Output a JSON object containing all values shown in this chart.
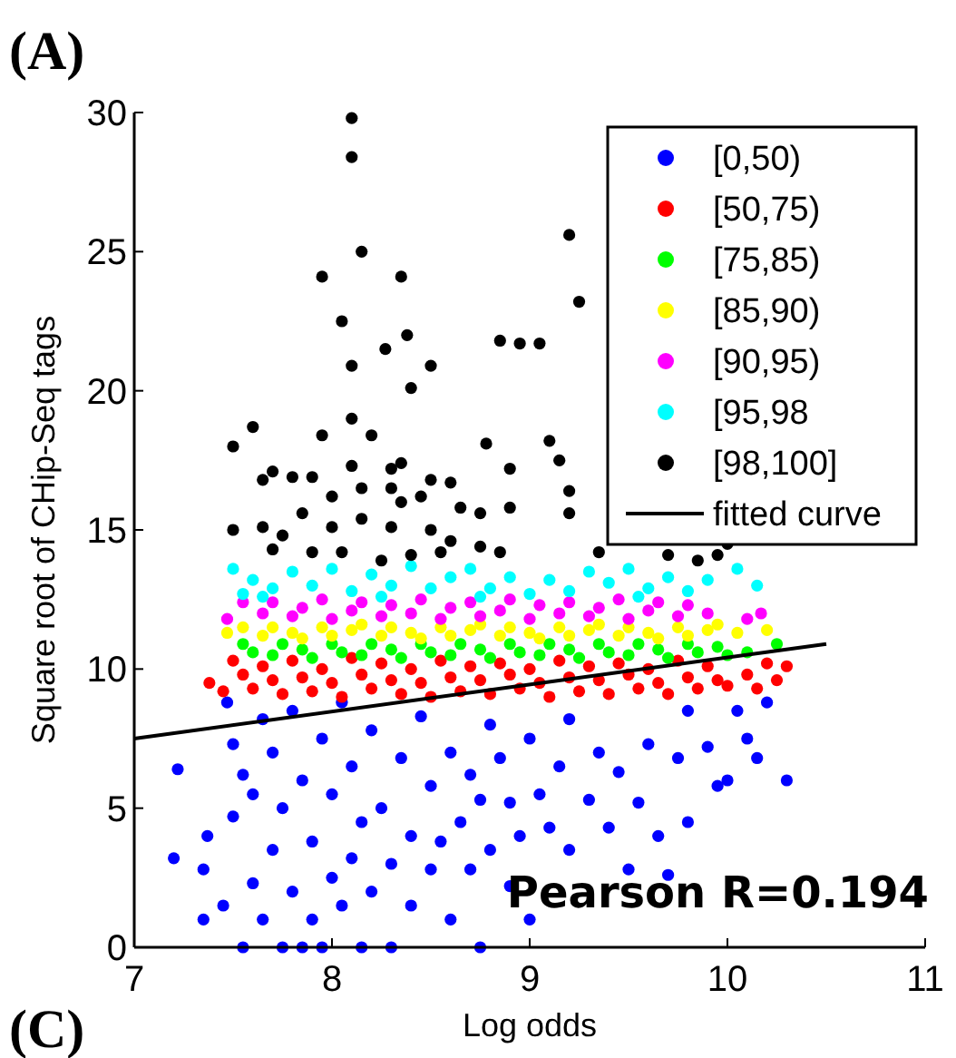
{
  "chart_data": {
    "type": "scatter",
    "xlabel": "Log odds",
    "ylabel": "Square root of CHip-Seq tags",
    "xlim": [
      7,
      11
    ],
    "xticks": [
      7,
      8,
      9,
      10,
      11
    ],
    "ylim": [
      0,
      30
    ],
    "yticks": [
      0,
      5,
      10,
      15,
      20,
      25,
      30
    ],
    "grid": false,
    "legend": "top right",
    "marker": "circle",
    "annotations": [
      "(A)",
      "(C)",
      "Pearson R=0.194"
    ],
    "series": [
      {
        "name": "[0,50)",
        "color": "#0000ff",
        "x": [
          7.22,
          7.2,
          7.35,
          7.35,
          7.37,
          7.45,
          7.47,
          7.5,
          7.5,
          7.55,
          7.55,
          7.6,
          7.6,
          7.65,
          7.65,
          7.7,
          7.7,
          7.75,
          7.75,
          7.8,
          7.8,
          7.85,
          7.85,
          7.9,
          7.9,
          7.95,
          7.95,
          8.0,
          8.0,
          8.05,
          8.05,
          8.1,
          8.1,
          8.15,
          8.15,
          8.2,
          8.2,
          8.25,
          8.3,
          8.3,
          8.35,
          8.4,
          8.4,
          8.45,
          8.5,
          8.5,
          8.55,
          8.6,
          8.6,
          8.65,
          8.7,
          8.7,
          8.75,
          8.75,
          8.8,
          8.8,
          8.85,
          8.9,
          8.9,
          8.95,
          9.0,
          9.0,
          9.05,
          9.1,
          9.15,
          9.2,
          9.2,
          9.3,
          9.35,
          9.4,
          9.45,
          9.5,
          9.55,
          9.6,
          9.65,
          9.7,
          9.75,
          9.8,
          9.8,
          9.9,
          9.95,
          10.0,
          10.05,
          10.1,
          10.15,
          10.2,
          10.3
        ],
        "values": [
          6.4,
          3.2,
          2.8,
          1.0,
          4.0,
          1.5,
          8.8,
          7.3,
          4.7,
          0.0,
          6.2,
          2.3,
          5.5,
          8.2,
          1.0,
          3.5,
          7.0,
          0.0,
          5.0,
          2.0,
          8.5,
          0.0,
          6.0,
          1.0,
          3.8,
          7.5,
          0.0,
          2.5,
          5.5,
          1.5,
          8.8,
          3.2,
          6.5,
          0.0,
          4.5,
          2.0,
          7.8,
          5.0,
          3.0,
          0.0,
          6.8,
          4.0,
          1.5,
          8.3,
          5.8,
          2.8,
          3.8,
          7.0,
          1.0,
          4.5,
          6.2,
          2.8,
          0.0,
          5.3,
          8.0,
          3.5,
          6.8,
          2.2,
          5.2,
          4.0,
          1.0,
          7.5,
          5.5,
          4.3,
          6.5,
          8.2,
          3.5,
          5.3,
          7.0,
          4.3,
          6.3,
          2.8,
          5.2,
          7.3,
          4.0,
          2.6,
          6.8,
          8.5,
          4.5,
          7.2,
          5.8,
          6.0,
          8.5,
          7.5,
          6.8,
          8.8,
          6.0
        ]
      },
      {
        "name": "[50,75)",
        "color": "#ff0000",
        "x": [
          7.38,
          7.45,
          7.5,
          7.55,
          7.6,
          7.65,
          7.7,
          7.75,
          7.8,
          7.85,
          7.9,
          7.95,
          8.0,
          8.05,
          8.1,
          8.15,
          8.2,
          8.25,
          8.3,
          8.35,
          8.4,
          8.45,
          8.5,
          8.55,
          8.6,
          8.65,
          8.7,
          8.75,
          8.8,
          8.85,
          8.9,
          8.95,
          9.0,
          9.05,
          9.1,
          9.15,
          9.2,
          9.25,
          9.3,
          9.35,
          9.4,
          9.45,
          9.5,
          9.55,
          9.6,
          9.65,
          9.7,
          9.75,
          9.8,
          9.85,
          9.9,
          9.95,
          10.0,
          10.1,
          10.15,
          10.2,
          10.25,
          10.3
        ],
        "values": [
          9.5,
          9.2,
          10.3,
          9.8,
          9.3,
          10.1,
          9.6,
          9.1,
          10.3,
          9.7,
          9.2,
          10.0,
          9.5,
          9.0,
          10.4,
          9.8,
          9.3,
          10.2,
          9.6,
          9.1,
          10.0,
          9.5,
          9.0,
          10.3,
          9.7,
          9.2,
          10.1,
          9.6,
          9.1,
          10.2,
          9.8,
          9.3,
          10.0,
          9.5,
          9.0,
          10.3,
          9.7,
          9.2,
          10.1,
          9.6,
          9.1,
          10.2,
          9.8,
          9.3,
          10.0,
          9.5,
          9.1,
          10.3,
          9.7,
          9.3,
          10.1,
          9.6,
          9.4,
          9.8,
          9.3,
          10.2,
          9.6,
          10.1
        ]
      },
      {
        "name": "[75,85)",
        "color": "#00ff00",
        "x": [
          7.55,
          7.6,
          7.7,
          7.75,
          7.85,
          7.9,
          8.0,
          8.05,
          8.15,
          8.2,
          8.3,
          8.35,
          8.45,
          8.5,
          8.6,
          8.65,
          8.75,
          8.8,
          8.9,
          8.95,
          9.05,
          9.1,
          9.2,
          9.25,
          9.35,
          9.4,
          9.5,
          9.55,
          9.65,
          9.7,
          9.8,
          9.85,
          9.95,
          10.0,
          10.1,
          10.25
        ],
        "values": [
          10.9,
          10.6,
          10.5,
          10.9,
          10.7,
          10.4,
          10.9,
          10.6,
          10.5,
          10.9,
          10.7,
          10.4,
          10.9,
          10.6,
          10.5,
          10.9,
          10.7,
          10.4,
          10.9,
          10.6,
          10.5,
          10.9,
          10.7,
          10.4,
          10.9,
          10.6,
          10.5,
          10.9,
          10.7,
          10.4,
          10.9,
          10.6,
          10.8,
          10.5,
          10.6,
          10.9
        ]
      },
      {
        "name": "[85,90)",
        "color": "#ffff00",
        "x": [
          7.47,
          7.55,
          7.65,
          7.7,
          7.8,
          7.85,
          7.95,
          8.0,
          8.1,
          8.15,
          8.25,
          8.3,
          8.4,
          8.45,
          8.55,
          8.6,
          8.7,
          8.75,
          8.85,
          8.9,
          9.0,
          9.05,
          9.15,
          9.2,
          9.3,
          9.35,
          9.45,
          9.5,
          9.6,
          9.65,
          9.75,
          9.8,
          9.9,
          9.95,
          10.05,
          10.2
        ],
        "values": [
          11.3,
          11.5,
          11.2,
          11.5,
          11.3,
          11.1,
          11.5,
          11.2,
          11.4,
          11.6,
          11.2,
          11.5,
          11.3,
          11.1,
          11.5,
          11.2,
          11.4,
          11.6,
          11.2,
          11.5,
          11.3,
          11.1,
          11.5,
          11.2,
          11.4,
          11.6,
          11.2,
          11.5,
          11.3,
          11.1,
          11.5,
          11.2,
          11.4,
          11.6,
          11.3,
          11.4
        ]
      },
      {
        "name": "[90,95)",
        "color": "#ff00ff",
        "x": [
          7.47,
          7.55,
          7.65,
          7.7,
          7.8,
          7.85,
          7.95,
          8.0,
          8.1,
          8.15,
          8.25,
          8.3,
          8.4,
          8.45,
          8.55,
          8.6,
          8.7,
          8.75,
          8.85,
          8.9,
          9.0,
          9.05,
          9.15,
          9.2,
          9.3,
          9.35,
          9.45,
          9.5,
          9.6,
          9.65,
          9.75,
          9.8,
          9.9,
          10.1,
          10.17
        ],
        "values": [
          11.8,
          12.4,
          12.0,
          12.4,
          11.9,
          12.2,
          12.5,
          11.8,
          12.1,
          12.4,
          11.9,
          12.3,
          12.0,
          12.5,
          11.8,
          12.2,
          12.4,
          11.9,
          12.1,
          12.5,
          11.8,
          12.3,
          12.0,
          12.4,
          11.9,
          12.2,
          12.5,
          11.8,
          12.1,
          12.4,
          11.9,
          12.3,
          12.0,
          11.8,
          12.0
        ]
      },
      {
        "name": "[95,98",
        "color": "#00ffff",
        "x": [
          7.5,
          7.55,
          7.6,
          7.65,
          7.7,
          7.8,
          7.9,
          8.0,
          8.1,
          8.2,
          8.25,
          8.3,
          8.4,
          8.5,
          8.6,
          8.7,
          8.75,
          8.8,
          8.9,
          9.0,
          9.1,
          9.2,
          9.3,
          9.4,
          9.5,
          9.55,
          9.6,
          9.7,
          9.8,
          9.9,
          10.05,
          10.15
        ],
        "values": [
          13.6,
          12.7,
          13.2,
          12.6,
          12.9,
          13.5,
          13.0,
          13.6,
          12.8,
          13.4,
          12.6,
          13.0,
          13.7,
          12.9,
          13.3,
          13.6,
          12.6,
          12.9,
          13.3,
          12.7,
          13.2,
          12.8,
          13.5,
          13.1,
          13.6,
          12.6,
          12.9,
          13.3,
          12.8,
          13.2,
          13.6,
          13.0
        ]
      },
      {
        "name": "[98,100]",
        "color": "#000000",
        "x": [
          8.1,
          8.1,
          8.15,
          7.95,
          8.35,
          8.05,
          8.1,
          8.27,
          8.38,
          8.4,
          8.5,
          8.1,
          8.85,
          8.95,
          9.05,
          9.2,
          9.25,
          7.5,
          7.6,
          7.95,
          8.2,
          8.78,
          9.1,
          9.15,
          8.35,
          8.1,
          8.3,
          7.7,
          7.65,
          7.8,
          7.9,
          8.0,
          8.15,
          8.3,
          8.5,
          8.6,
          8.9,
          9.2,
          8.45,
          8.35,
          8.65,
          8.75,
          8.9,
          9.2,
          7.5,
          7.65,
          7.75,
          7.85,
          8.0,
          8.15,
          8.3,
          8.5,
          8.6,
          8.75,
          7.7,
          7.9,
          8.05,
          8.25,
          8.4,
          8.55,
          8.85,
          9.35,
          9.7,
          9.85,
          9.95,
          10.0
        ],
        "values": [
          29.8,
          28.4,
          25.0,
          24.1,
          24.1,
          22.5,
          20.9,
          21.5,
          22.0,
          20.1,
          20.9,
          19.0,
          21.8,
          21.7,
          21.7,
          25.6,
          23.2,
          18.0,
          18.7,
          18.4,
          18.4,
          18.1,
          18.2,
          17.5,
          17.4,
          17.3,
          17.2,
          17.1,
          16.8,
          16.9,
          16.9,
          16.2,
          16.5,
          16.5,
          16.8,
          16.7,
          17.2,
          16.4,
          16.2,
          16.0,
          15.8,
          15.6,
          15.8,
          15.6,
          15.0,
          15.1,
          14.8,
          15.6,
          15.1,
          15.4,
          15.1,
          15.0,
          14.6,
          14.4,
          14.3,
          14.2,
          14.2,
          13.9,
          14.1,
          14.2,
          14.2,
          14.2,
          14.1,
          13.9,
          14.1,
          14.5
        ]
      },
      {
        "name": "fitted curve",
        "type": "line",
        "color": "#000000",
        "marker": "none",
        "line_style": "solid",
        "x": [
          7,
          10.5
        ],
        "values": [
          7.5,
          10.9
        ]
      }
    ]
  }
}
